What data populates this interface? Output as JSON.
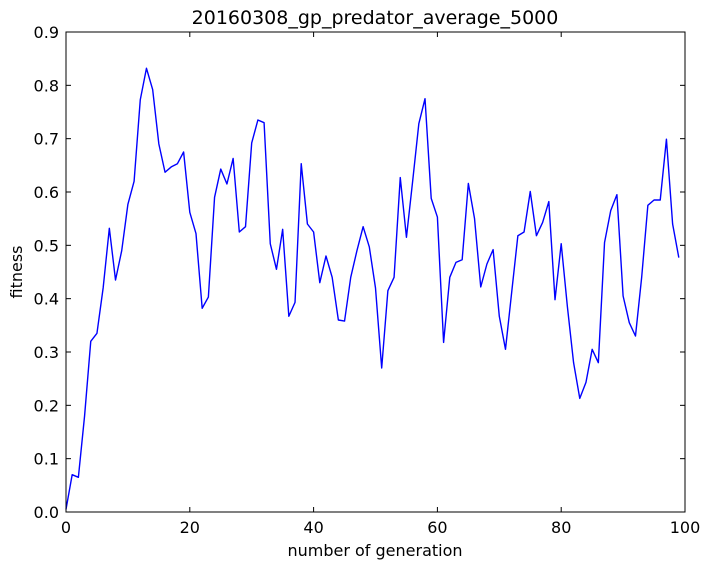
{
  "chart_data": {
    "type": "line",
    "title": "20160308_gp_predator_average_5000",
    "xlabel": "number of generation",
    "ylabel": "fitness",
    "xlim": [
      0,
      100
    ],
    "ylim": [
      0.0,
      0.9
    ],
    "xticks": [
      "0",
      "20",
      "40",
      "60",
      "80",
      "100"
    ],
    "yticks": [
      "0.0",
      "0.1",
      "0.2",
      "0.3",
      "0.4",
      "0.5",
      "0.6",
      "0.7",
      "0.8",
      "0.9"
    ],
    "grid": false,
    "series": [
      {
        "color": "#0000ff",
        "x": [
          0,
          1,
          2,
          3,
          4,
          5,
          6,
          7,
          8,
          9,
          10,
          11,
          12,
          13,
          14,
          15,
          16,
          17,
          18,
          19,
          20,
          21,
          22,
          23,
          24,
          25,
          26,
          27,
          28,
          29,
          30,
          31,
          32,
          33,
          34,
          35,
          36,
          37,
          38,
          39,
          40,
          41,
          42,
          43,
          44,
          45,
          46,
          47,
          48,
          49,
          50,
          51,
          52,
          53,
          54,
          55,
          56,
          57,
          58,
          59,
          60,
          61,
          62,
          63,
          64,
          65,
          66,
          67,
          68,
          69,
          70,
          71,
          72,
          73,
          74,
          75,
          76,
          77,
          78,
          79,
          80,
          81,
          82,
          83,
          84,
          85,
          86,
          87,
          88,
          89,
          90,
          91,
          92,
          93,
          94,
          95,
          96,
          97,
          98,
          99
        ],
        "values": [
          0.005,
          0.07,
          0.065,
          0.18,
          0.32,
          0.335,
          0.42,
          0.532,
          0.435,
          0.49,
          0.577,
          0.62,
          0.773,
          0.832,
          0.792,
          0.69,
          0.637,
          0.647,
          0.653,
          0.675,
          0.562,
          0.522,
          0.382,
          0.403,
          0.59,
          0.643,
          0.615,
          0.663,
          0.525,
          0.535,
          0.692,
          0.735,
          0.73,
          0.503,
          0.455,
          0.53,
          0.367,
          0.393,
          0.653,
          0.54,
          0.525,
          0.43,
          0.48,
          0.44,
          0.36,
          0.358,
          0.44,
          0.49,
          0.535,
          0.497,
          0.42,
          0.27,
          0.415,
          0.44,
          0.627,
          0.515,
          0.62,
          0.728,
          0.775,
          0.588,
          0.553,
          0.318,
          0.44,
          0.468,
          0.473,
          0.616,
          0.55,
          0.422,
          0.465,
          0.492,
          0.367,
          0.305,
          0.412,
          0.518,
          0.525,
          0.601,
          0.518,
          0.543,
          0.582,
          0.398,
          0.503,
          0.385,
          0.28,
          0.213,
          0.243,
          0.305,
          0.28,
          0.505,
          0.565,
          0.595,
          0.405,
          0.355,
          0.33,
          0.44,
          0.575,
          0.585,
          0.585,
          0.699,
          0.54,
          0.477
        ]
      }
    ]
  }
}
